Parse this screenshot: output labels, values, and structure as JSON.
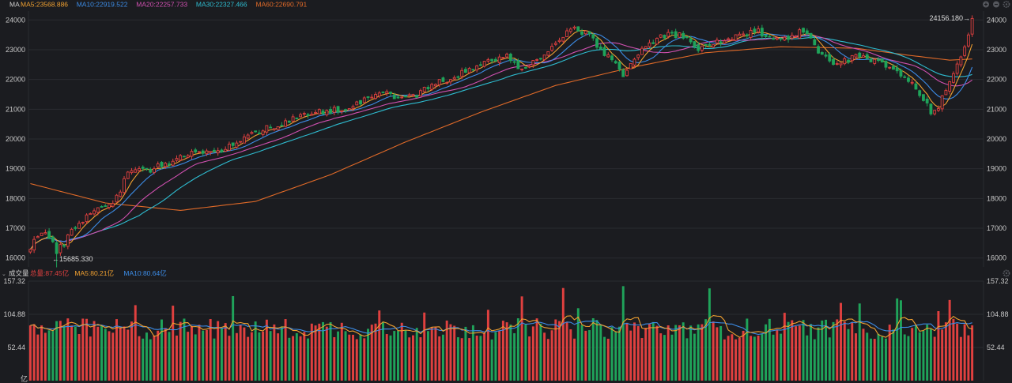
{
  "colors": {
    "background": "#1b1c20",
    "up": "#e0403f",
    "down": "#1fa35a",
    "ma5": "#f0a030",
    "ma10": "#3c8ce6",
    "ma20": "#d050b0",
    "ma30": "#2ebcd0",
    "ma60": "#e06a28",
    "grid": "#2a2b30"
  },
  "icons": [
    "zoom-in-icon",
    "zoom-out-icon",
    "settings-icon"
  ],
  "price_panel": {
    "legend_title": "MA",
    "legend": [
      {
        "key": "ma5",
        "label": "MA5:23568.886"
      },
      {
        "key": "ma10",
        "label": "MA10:22919.522"
      },
      {
        "key": "ma20",
        "label": "MA20:22257.733"
      },
      {
        "key": "ma30",
        "label": "MA30:22327.466"
      },
      {
        "key": "ma60",
        "label": "MA60:22690.791"
      }
    ],
    "high_label": "24156.180→",
    "low_label": "←15685.330"
  },
  "volume_panel": {
    "legend_title": "成交量",
    "legend": [
      {
        "key": "up",
        "label": "总量:87.45亿"
      },
      {
        "key": "ma5",
        "label": "MA5:80.21亿"
      },
      {
        "key": "ma10",
        "label": "MA10:80.64亿"
      }
    ],
    "unit_label": "亿"
  },
  "chart_data": [
    {
      "type": "candlestick",
      "title": "",
      "ylim": [
        15700,
        24300
      ],
      "y_ticks": [
        "16000",
        "17000",
        "18000",
        "19000",
        "20000",
        "21000",
        "22000",
        "23000",
        "24000"
      ],
      "y_tick_values": [
        16000,
        17000,
        18000,
        19000,
        20000,
        21000,
        22000,
        23000,
        24000
      ],
      "grid": true,
      "anchors": [
        [
          0,
          16400
        ],
        [
          3,
          16900
        ],
        [
          5,
          16700
        ],
        [
          7,
          16200
        ],
        [
          9,
          16500
        ],
        [
          11,
          16900
        ],
        [
          13,
          17200
        ],
        [
          16,
          17500
        ],
        [
          19,
          17750
        ],
        [
          22,
          17900
        ],
        [
          24,
          18200
        ],
        [
          26,
          18950
        ],
        [
          28,
          19050
        ],
        [
          31,
          18950
        ],
        [
          35,
          19100
        ],
        [
          39,
          19350
        ],
        [
          43,
          19550
        ],
        [
          47,
          19500
        ],
        [
          51,
          19650
        ],
        [
          55,
          19900
        ],
        [
          59,
          20150
        ],
        [
          63,
          20400
        ],
        [
          67,
          20500
        ],
        [
          71,
          20700
        ],
        [
          75,
          20850
        ],
        [
          79,
          20950
        ],
        [
          83,
          21000
        ],
        [
          87,
          21200
        ],
        [
          91,
          21500
        ],
        [
          95,
          21550
        ],
        [
          99,
          21350
        ],
        [
          103,
          21500
        ],
        [
          107,
          21800
        ],
        [
          111,
          22000
        ],
        [
          115,
          22200
        ],
        [
          119,
          22450
        ],
        [
          123,
          22650
        ],
        [
          127,
          22800
        ],
        [
          129,
          22500
        ],
        [
          131,
          22400
        ],
        [
          135,
          22650
        ],
        [
          139,
          23050
        ],
        [
          142,
          23450
        ],
        [
          145,
          23750
        ],
        [
          148,
          23550
        ],
        [
          150,
          23300
        ],
        [
          153,
          22900
        ],
        [
          156,
          22500
        ],
        [
          158,
          22200
        ],
        [
          160,
          22550
        ],
        [
          163,
          22950
        ],
        [
          166,
          23300
        ],
        [
          170,
          23500
        ],
        [
          174,
          23450
        ],
        [
          178,
          23000
        ],
        [
          182,
          23250
        ],
        [
          186,
          23300
        ],
        [
          190,
          23500
        ],
        [
          194,
          23600
        ],
        [
          198,
          23450
        ],
        [
          202,
          23350
        ],
        [
          205,
          23650
        ],
        [
          207,
          23500
        ],
        [
          209,
          23100
        ],
        [
          211,
          22800
        ],
        [
          214,
          22600
        ],
        [
          218,
          22650
        ],
        [
          221,
          22800
        ],
        [
          224,
          22650
        ],
        [
          227,
          22500
        ],
        [
          230,
          22350
        ],
        [
          233,
          22050
        ],
        [
          236,
          21700
        ],
        [
          238,
          21300
        ],
        [
          240,
          20900
        ],
        [
          242,
          21100
        ],
        [
          244,
          21600
        ],
        [
          246,
          22200
        ],
        [
          248,
          22800
        ],
        [
          250,
          23600
        ],
        [
          251,
          24050
        ]
      ],
      "ma60_anchors": [
        [
          0,
          18500
        ],
        [
          20,
          17850
        ],
        [
          40,
          17600
        ],
        [
          60,
          17900
        ],
        [
          80,
          18800
        ],
        [
          100,
          19900
        ],
        [
          120,
          20900
        ],
        [
          140,
          21800
        ],
        [
          160,
          22400
        ],
        [
          180,
          22900
        ],
        [
          200,
          23100
        ],
        [
          220,
          23050
        ],
        [
          235,
          22800
        ],
        [
          245,
          22650
        ],
        [
          251,
          22690
        ]
      ],
      "count": 252,
      "high": 24156.18,
      "low": 15685.33,
      "ma_last": {
        "ma5": 23568.886,
        "ma10": 22919.522,
        "ma20": 22257.733,
        "ma30": 22327.466,
        "ma60": 22690.791
      }
    },
    {
      "type": "bar",
      "title": "",
      "ylim": [
        0,
        157.32
      ],
      "y_ticks": [
        "157.32",
        "104.88",
        "52.44"
      ],
      "y_tick_values": [
        157.32,
        104.88,
        52.44
      ],
      "base_volume": 82,
      "last_volume": 87.45,
      "ma_last": {
        "ma5": 80.21,
        "ma10": 80.64
      }
    }
  ]
}
